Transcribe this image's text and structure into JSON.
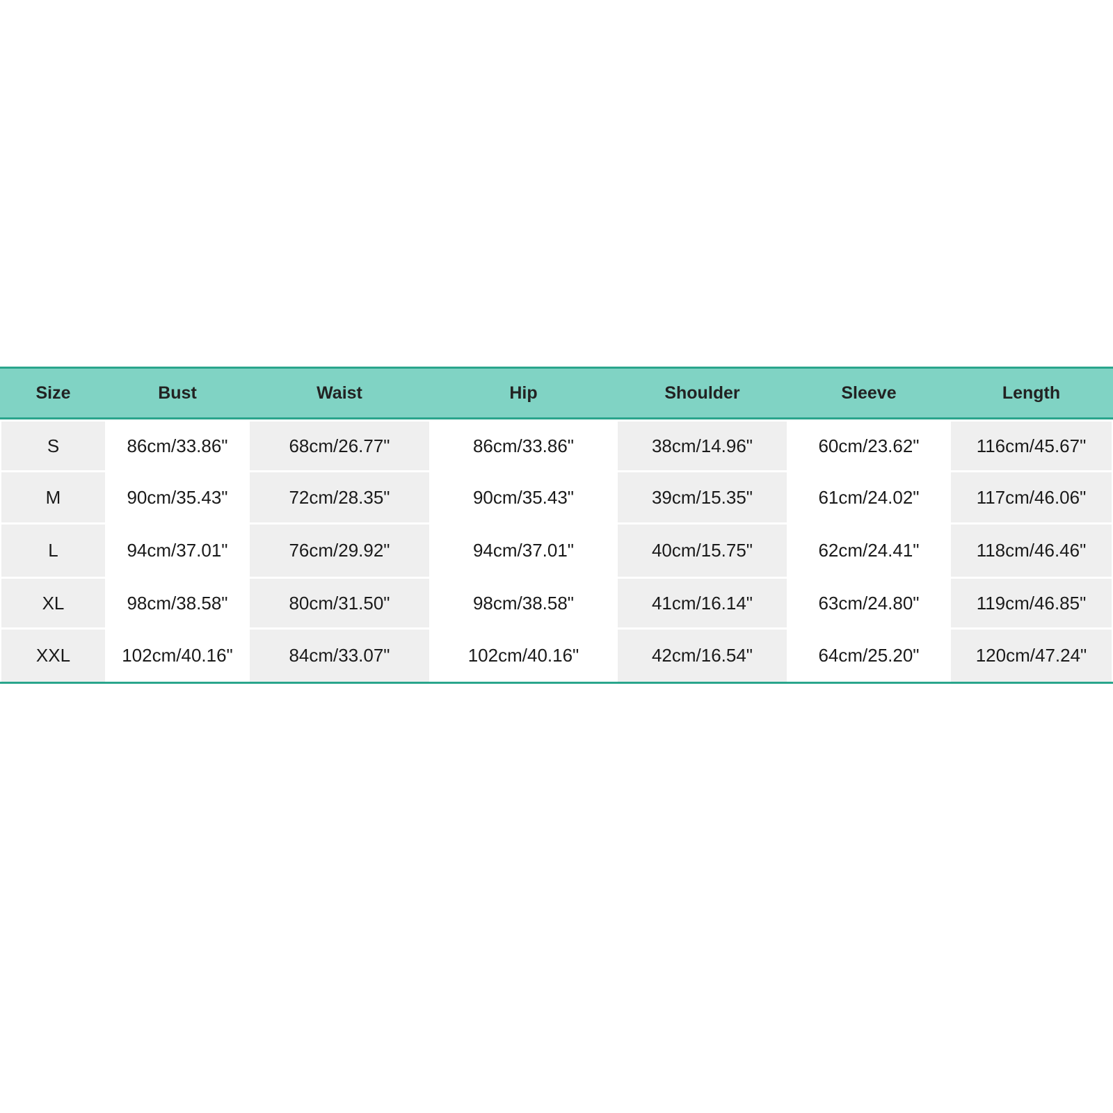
{
  "table": {
    "columns": [
      "Size",
      "Bust",
      "Waist",
      "Hip",
      "Shoulder",
      "Sleeve",
      "Length"
    ],
    "rows": [
      [
        "S",
        "86cm/33.86\"",
        "68cm/26.77\"",
        "86cm/33.86\"",
        "38cm/14.96\"",
        "60cm/23.62\"",
        "116cm/45.67\""
      ],
      [
        "M",
        "90cm/35.43\"",
        "72cm/28.35\"",
        "90cm/35.43\"",
        "39cm/15.35\"",
        "61cm/24.02\"",
        "117cm/46.06\""
      ],
      [
        "L",
        "94cm/37.01\"",
        "76cm/29.92\"",
        "94cm/37.01\"",
        "40cm/15.75\"",
        "62cm/24.41\"",
        "118cm/46.46\""
      ],
      [
        "XL",
        "98cm/38.58\"",
        "80cm/31.50\"",
        "98cm/38.58\"",
        "41cm/16.14\"",
        "63cm/24.80\"",
        "119cm/46.85\""
      ],
      [
        "XXL",
        "102cm/40.16\"",
        "84cm/33.07\"",
        "102cm/40.16\"",
        "42cm/16.54\"",
        "64cm/25.20\"",
        "120cm/47.24\""
      ]
    ]
  }
}
